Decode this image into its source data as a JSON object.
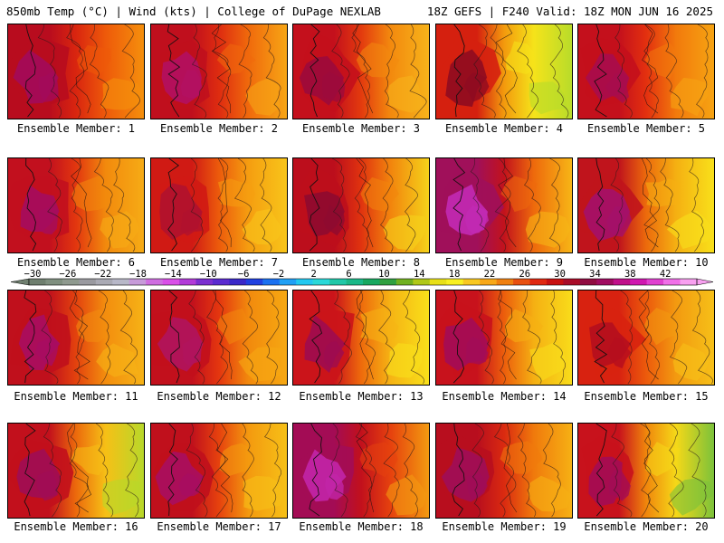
{
  "header": {
    "left_text": "850mb Temp (°C) | Wind (kts) | College of DuPage NEXLAB",
    "right_text": "18Z GEFS | F240 Valid: 18Z MON JUN 16 2025"
  },
  "members": [
    {
      "label": "Ensemble Member: 1",
      "palette": [
        "#a30a5a",
        "#b80c1e",
        "#d9250f",
        "#ee5a0a",
        "#f58f0c"
      ]
    },
    {
      "label": "Ensemble Member: 2",
      "palette": [
        "#b31062",
        "#c00f1d",
        "#de2c10",
        "#f06a0c",
        "#f7a515"
      ]
    },
    {
      "label": "Ensemble Member: 3",
      "palette": [
        "#9c0a3c",
        "#c4101c",
        "#e33a0e",
        "#f38a0e",
        "#f7b31a"
      ]
    },
    {
      "label": "Ensemble Member: 4",
      "palette": [
        "#8f0b20",
        "#d5200f",
        "#f39a0d",
        "#f5e31a",
        "#b8dc2a"
      ]
    },
    {
      "label": "Ensemble Member: 5",
      "palette": [
        "#a80c4e",
        "#c4101c",
        "#e3300f",
        "#f27a0c",
        "#f6a312"
      ]
    },
    {
      "label": "Ensemble Member: 6",
      "palette": [
        "#a50c5e",
        "#c2101e",
        "#e2360f",
        "#f28a0d",
        "#f6ab15"
      ]
    },
    {
      "label": "Ensemble Member: 7",
      "palette": [
        "#b0122e",
        "#d01a14",
        "#ec5b0c",
        "#f59e10",
        "#f8c51a"
      ]
    },
    {
      "label": "Ensemble Member: 8",
      "palette": [
        "#8e0a30",
        "#bc0e1c",
        "#e0330f",
        "#f2850d",
        "#f5d21a"
      ]
    },
    {
      "label": "Ensemble Member: 9",
      "palette": [
        "#c22ab4",
        "#a0105a",
        "#c2121c",
        "#ee6a0c",
        "#f7b516"
      ]
    },
    {
      "label": "Ensemble Member: 10",
      "palette": [
        "#a4106a",
        "#c0141c",
        "#ec6a0c",
        "#f5b012",
        "#f8e01a"
      ]
    },
    {
      "label": "Ensemble Member: 11",
      "palette": [
        "#a80d62",
        "#c0101c",
        "#e3420e",
        "#f38e0e",
        "#f6b216"
      ]
    },
    {
      "label": "Ensemble Member: 12",
      "palette": [
        "#b0145e",
        "#c2101c",
        "#e4360f",
        "#f28a0d",
        "#f6a812"
      ]
    },
    {
      "label": "Ensemble Member: 13",
      "palette": [
        "#9e0b50",
        "#cb141a",
        "#ee6a0c",
        "#f6b414",
        "#f8e01a"
      ]
    },
    {
      "label": "Ensemble Member: 14",
      "palette": [
        "#a30c58",
        "#c8121c",
        "#ec5e0c",
        "#f5b013",
        "#f8dc1a"
      ]
    },
    {
      "label": "Ensemble Member: 15",
      "palette": [
        "#b50e1e",
        "#d82210",
        "#ec5a0c",
        "#f39a10",
        "#f6c018"
      ]
    },
    {
      "label": "Ensemble Member: 16",
      "palette": [
        "#a00d55",
        "#c2101c",
        "#ec6a0c",
        "#f6c016",
        "#b8d82a"
      ]
    },
    {
      "label": "Ensemble Member: 17",
      "palette": [
        "#a80e60",
        "#c0101c",
        "#e6420e",
        "#f49a0f",
        "#f6c017"
      ]
    },
    {
      "label": "Ensemble Member: 18",
      "palette": [
        "#c225a8",
        "#a30c55",
        "#c2101c",
        "#e6420e",
        "#f39a10"
      ]
    },
    {
      "label": "Ensemble Member: 19",
      "palette": [
        "#a00d58",
        "#b80e1e",
        "#da2a10",
        "#f07a0c",
        "#f6b014"
      ]
    },
    {
      "label": "Ensemble Member: 20",
      "palette": [
        "#a30c55",
        "#c8121c",
        "#f0860c",
        "#f5d818",
        "#7cc23a"
      ]
    }
  ],
  "colorbar": {
    "labels": [
      "−30",
      "−26",
      "−22",
      "−18",
      "−14",
      "−10",
      "−6",
      "−2",
      "2",
      "6",
      "10",
      "14",
      "18",
      "22",
      "26",
      "30",
      "34",
      "38",
      "42"
    ],
    "colors": [
      "#6f7f6f",
      "#7f8f7f",
      "#8f9a8f",
      "#9a9aa0",
      "#aaaab4",
      "#b8b8c8",
      "#c79bd9",
      "#cf6ee0",
      "#d94fe8",
      "#b23bd8",
      "#7b2fd0",
      "#5a2bd0",
      "#3a28c8",
      "#2040e0",
      "#1a70f0",
      "#20a0f5",
      "#22c8f0",
      "#2ad8d8",
      "#20c8a8",
      "#1ab888",
      "#18a860",
      "#30a040",
      "#70b020",
      "#b0c818",
      "#e8e018",
      "#f8f020",
      "#f8c820",
      "#f8a818",
      "#f08010",
      "#e85010",
      "#e02810",
      "#c81010",
      "#a80c28",
      "#900c40",
      "#a00c60",
      "#c0108a",
      "#d018b0",
      "#e040d0",
      "#f070e8",
      "#f8a0f0"
    ]
  }
}
